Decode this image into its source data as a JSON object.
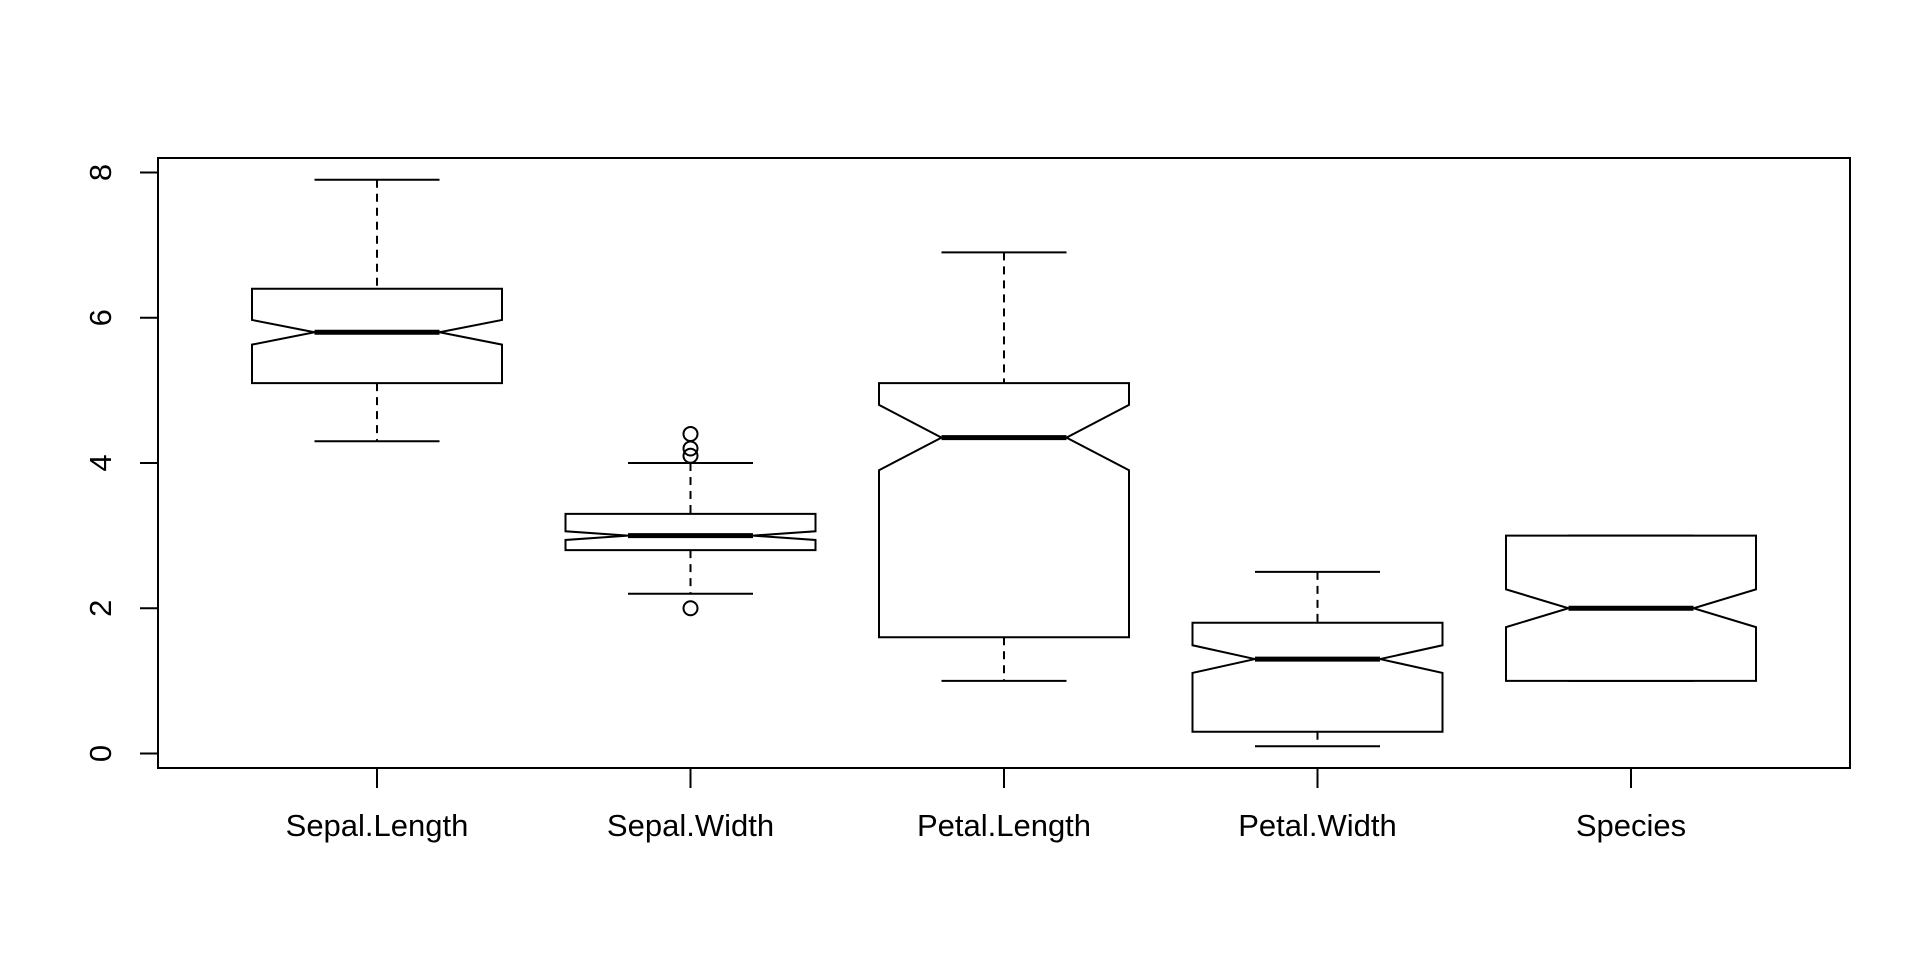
{
  "chart_data": {
    "type": "boxplot",
    "title": "",
    "xlabel": "",
    "ylabel": "",
    "ylim": [
      -0.2,
      8.2
    ],
    "y_ticks": [
      0,
      2,
      4,
      6,
      8
    ],
    "y_tick_labels": [
      "0",
      "2",
      "4",
      "6",
      "8"
    ],
    "notched": true,
    "grid": false,
    "legend": "none",
    "colors": {
      "stroke": "#000000",
      "fill": "#ffffff",
      "background": "#ffffff"
    },
    "categories": [
      "Sepal.Length",
      "Sepal.Width",
      "Petal.Length",
      "Petal.Width",
      "Species"
    ],
    "boxes": [
      {
        "name": "Sepal.Length",
        "whisker_low": 4.3,
        "q1": 5.1,
        "median": 5.8,
        "q3": 6.4,
        "whisker_high": 7.9,
        "notch_low": 5.63,
        "notch_high": 5.97,
        "outliers": []
      },
      {
        "name": "Sepal.Width",
        "whisker_low": 2.2,
        "q1": 2.8,
        "median": 3.0,
        "q3": 3.3,
        "whisker_high": 4.0,
        "notch_low": 2.94,
        "notch_high": 3.06,
        "outliers": [
          4.4,
          4.1,
          4.2,
          2.0
        ]
      },
      {
        "name": "Petal.Length",
        "whisker_low": 1.0,
        "q1": 1.6,
        "median": 4.35,
        "q3": 5.1,
        "whisker_high": 6.9,
        "notch_low": 3.9,
        "notch_high": 4.8,
        "outliers": []
      },
      {
        "name": "Petal.Width",
        "whisker_low": 0.1,
        "q1": 0.3,
        "median": 1.3,
        "q3": 1.8,
        "whisker_high": 2.5,
        "notch_low": 1.11,
        "notch_high": 1.49,
        "outliers": []
      },
      {
        "name": "Species",
        "whisker_low": 1.0,
        "q1": 1.0,
        "median": 2.0,
        "q3": 3.0,
        "whisker_high": 3.0,
        "notch_low": 1.74,
        "notch_high": 2.26,
        "outliers": []
      }
    ]
  }
}
